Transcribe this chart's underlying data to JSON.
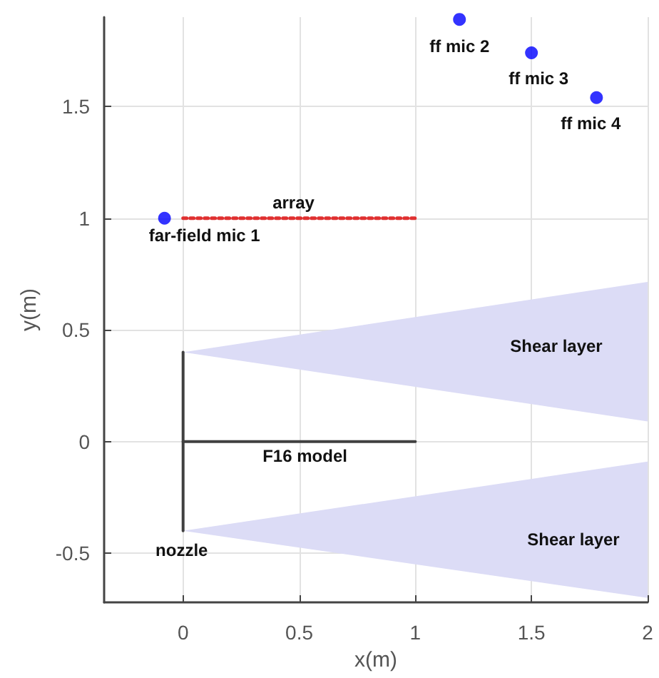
{
  "chart_data": {
    "type": "scatter",
    "xlabel": "x(m)",
    "ylabel": "y(m)",
    "xlim": [
      -0.34,
      2
    ],
    "xticks": [
      0,
      0.5,
      1,
      1.5,
      2
    ],
    "ylim": [
      -0.72,
      1.9
    ],
    "yticks": [
      -0.5,
      0,
      0.5,
      1,
      1.5
    ],
    "grid": true,
    "series": [
      {
        "type": "line",
        "color": "#dcdcf6",
        "x": [
          0,
          2
        ],
        "values": [
          null,
          null
        ],
        "lower": [
          0.4,
          0.09
        ],
        "upper": [
          0.4,
          0.715
        ]
      },
      {
        "type": "line",
        "color": "#dcdcf6",
        "x": [
          0,
          2
        ],
        "values": [
          null,
          null
        ],
        "lower": [
          -0.4,
          -0.7
        ],
        "upper": [
          -0.4,
          -0.09
        ]
      },
      {
        "type": "line",
        "name": "array",
        "color": "#e03030",
        "x": [
          0,
          1
        ],
        "values": [
          1,
          1
        ],
        "line_style": "dotted",
        "marker": "none"
      },
      {
        "type": "line",
        "name": "nozzle",
        "color": "#404040",
        "x": [
          0,
          0
        ],
        "values": [
          -0.4,
          0.4
        ],
        "line_style": "solid",
        "marker": "none"
      },
      {
        "type": "line",
        "name": "F16 model",
        "color": "#404040",
        "x": [
          0,
          1
        ],
        "values": [
          0,
          0
        ],
        "line_style": "solid",
        "marker": "none"
      },
      {
        "name": "far-field mic 1",
        "color": "#0000ff",
        "x": [
          -0.08
        ],
        "values": [
          1
        ],
        "marker": "circle"
      },
      {
        "name": "ff mic 2",
        "color": "#0000ff",
        "x": [
          1.19
        ],
        "values": [
          1.89
        ],
        "marker": "circle"
      },
      {
        "name": "ff mic 3",
        "color": "#0000ff",
        "x": [
          1.5
        ],
        "values": [
          1.74
        ],
        "marker": "circle"
      },
      {
        "name": "ff mic 4",
        "color": "#0000ff",
        "x": [
          1.78
        ],
        "values": [
          1.54
        ],
        "marker": "circle"
      }
    ],
    "annotations": [
      "Shear layer",
      "Shear layer"
    ]
  }
}
